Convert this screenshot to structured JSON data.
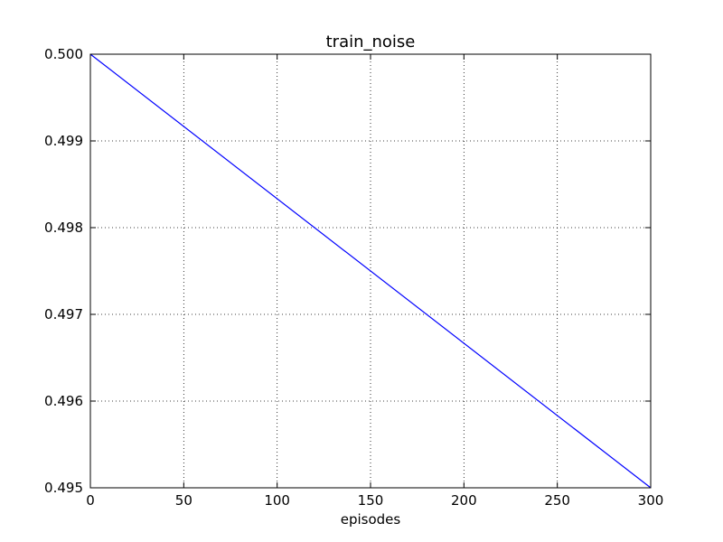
{
  "chart_data": {
    "type": "line",
    "title": "train_noise",
    "xlabel": "episodes",
    "ylabel": "",
    "xlim": [
      0,
      300
    ],
    "ylim": [
      0.495,
      0.5
    ],
    "xticks": [
      0,
      50,
      100,
      150,
      200,
      250,
      300
    ],
    "xtick_labels": [
      "0",
      "50",
      "100",
      "150",
      "200",
      "250",
      "300"
    ],
    "yticks": [
      0.495,
      0.496,
      0.497,
      0.498,
      0.499,
      0.5
    ],
    "ytick_labels": [
      "0.495",
      "0.496",
      "0.497",
      "0.498",
      "0.499",
      "0.500"
    ],
    "grid": true,
    "series": [
      {
        "color": "#0000ff",
        "x": [
          0,
          300
        ],
        "y": [
          0.5,
          0.495
        ]
      }
    ]
  }
}
